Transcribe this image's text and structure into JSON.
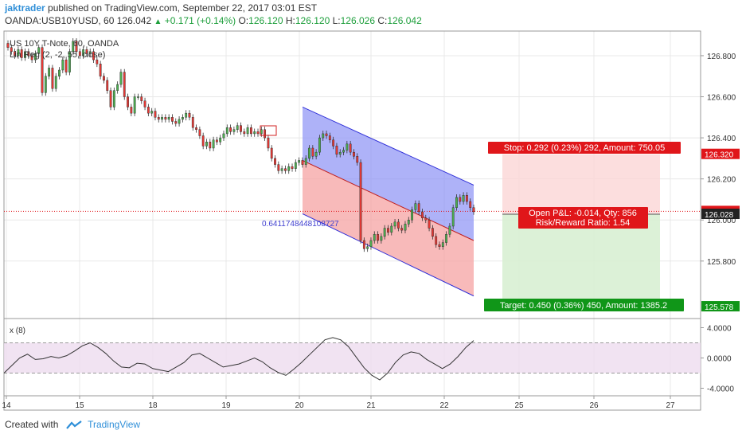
{
  "header": {
    "author": "jaktrader",
    "published_text": "published on TradingView.com, September 22, 2017 03:01 EST",
    "symbol_line": "OANDA:USB10YUSD, 60",
    "last": "126.042",
    "change": "+0.171 (+0.14%)",
    "o_label": "O:",
    "o_value": "126.120",
    "h_label": "H:",
    "h_value": "126.120",
    "l_label": "L:",
    "l_value": "126.026",
    "c_label": "C:",
    "c_value": "126.042"
  },
  "legend": {
    "instrument": "US 10Y T-Note, 60, OANDA",
    "indicator": "Lin Reg (2, -2, 55, close)",
    "osc_label": "x (8)"
  },
  "footer": {
    "created_with": "Created with",
    "brand": "TradingView"
  },
  "colors": {
    "bull": "#4caf50",
    "bear": "#e53935",
    "channel_upper": "#8c91f5",
    "channel_lower": "#f5a3a3",
    "stop": "#e0161a",
    "target": "#109618",
    "price_tag": "#e0161a",
    "osc_line": "#333333",
    "osc_band": "#eedcef",
    "grid": "#e8e8e8"
  },
  "chart_data": {
    "type": "candlestick",
    "price_axis": {
      "ylim": [
        125.52,
        126.92
      ],
      "ticks": [
        "126.800",
        "126.600",
        "126.400",
        "126.200",
        "126.000",
        "125.800"
      ]
    },
    "time_axis": {
      "labels": [
        "14",
        "15",
        "18",
        "19",
        "20",
        "21",
        "22",
        "25",
        "26",
        "27"
      ]
    },
    "last_price": 126.042,
    "close_series": [
      126.84,
      126.82,
      126.8,
      126.83,
      126.79,
      126.82,
      126.8,
      126.78,
      126.81,
      126.84,
      126.62,
      126.7,
      126.74,
      126.64,
      126.7,
      126.73,
      126.78,
      126.72,
      126.82,
      126.87,
      126.82,
      126.8,
      126.83,
      126.81,
      126.82,
      126.78,
      126.76,
      126.7,
      126.68,
      126.63,
      126.55,
      126.63,
      126.66,
      126.72,
      126.6,
      126.55,
      126.52,
      126.6,
      126.6,
      126.58,
      126.55,
      126.52,
      126.53,
      126.5,
      126.49,
      126.5,
      126.49,
      126.5,
      126.48,
      126.47,
      126.49,
      126.5,
      126.52,
      126.5,
      126.45,
      126.44,
      126.41,
      126.36,
      126.38,
      126.35,
      126.39,
      126.38,
      126.4,
      126.42,
      126.45,
      126.43,
      126.44,
      126.46,
      126.43,
      126.42,
      126.45,
      126.42,
      126.43,
      126.42,
      126.44,
      126.4,
      126.35,
      126.3,
      126.27,
      126.24,
      126.25,
      126.24,
      126.26,
      126.25,
      126.28,
      126.29,
      126.27,
      126.3,
      126.35,
      126.31,
      126.33,
      126.4,
      126.42,
      126.41,
      126.39,
      126.36,
      126.32,
      126.33,
      126.34,
      126.37,
      126.33,
      126.31,
      126.28,
      125.9,
      125.86,
      125.87,
      125.9,
      125.93,
      125.9,
      125.92,
      125.96,
      125.94,
      125.97,
      125.99,
      125.96,
      125.95,
      125.98,
      126.0,
      126.05,
      126.08,
      126.04,
      126.01,
      126.0,
      125.96,
      125.92,
      125.88,
      125.87,
      125.89,
      125.93,
      125.97,
      126.06,
      126.11,
      126.09,
      126.12,
      126.09,
      126.06,
      126.04
    ],
    "lin_reg": {
      "upper": [
        126.55,
        126.17
      ],
      "center": [
        126.29,
        125.9
      ],
      "lower": [
        126.03,
        125.63
      ],
      "value_label": "0.6411748448108727"
    },
    "position": {
      "stop_label": "Stop: 0.292 (0.23%) 292, Amount: 750.05",
      "pnl_label": "Open P&L: -0.014, Qty: 856",
      "rr_label": "Risk/Reward Ratio: 1.54",
      "target_label": "Target: 0.450 (0.36%) 450, Amount: 1385.2",
      "entry": 126.028,
      "stop": 126.32,
      "target": 125.578
    },
    "price_tags": [
      "126.320",
      "126.042",
      "126.028",
      "125.578"
    ],
    "oscillator": {
      "ylim": [
        -5.0,
        5.0
      ],
      "ticks": [
        "4.0000",
        "0.0000",
        "-4.0000"
      ],
      "band": [
        2.0,
        -2.0
      ],
      "values": [
        -2.0,
        -1.0,
        0.0,
        0.5,
        -0.2,
        -0.1,
        0.2,
        0.0,
        0.3,
        0.9,
        1.6,
        2.0,
        1.4,
        0.6,
        -0.4,
        -1.2,
        -1.3,
        -0.7,
        -0.8,
        -1.4,
        -1.6,
        -1.8,
        -1.2,
        -0.6,
        0.4,
        0.6,
        0.0,
        -0.6,
        -1.2,
        -1.0,
        -0.8,
        -0.4,
        0.0,
        -0.5,
        -1.3,
        -1.9,
        -2.3,
        -1.5,
        -0.6,
        0.4,
        1.4,
        2.4,
        2.7,
        2.4,
        1.5,
        0.1,
        -1.3,
        -2.3,
        -2.9,
        -2.0,
        -0.6,
        0.4,
        0.8,
        0.6,
        -0.2,
        -0.8,
        -1.4,
        -0.8,
        0.2,
        1.4,
        2.3
      ]
    }
  }
}
